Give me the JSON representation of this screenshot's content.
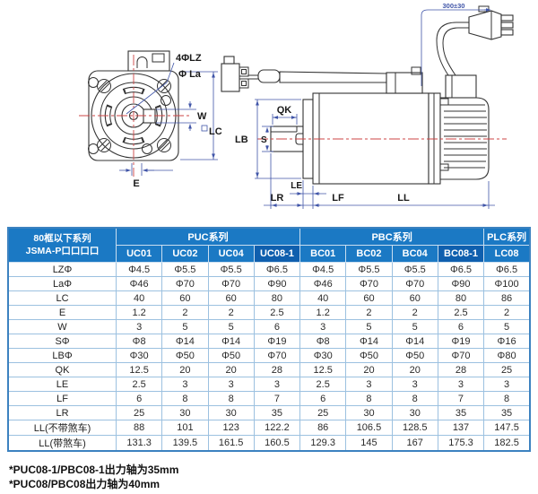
{
  "diagram": {
    "front_labels": {
      "bolt_holes": "4ΦLZ",
      "pilot_dia": "Φ La",
      "keyway_width": "W",
      "frame_size": "LC",
      "keyway_offset": "E"
    },
    "side_labels": {
      "keyway_length": "QK",
      "pilot_boss": "LB",
      "shaft_dia": "S",
      "le": "LE",
      "shaft_length": "LR",
      "lf": "LF",
      "body_length": "LL",
      "cable_length": "300±30"
    }
  },
  "table": {
    "corner": [
      "80框以下系列",
      "JSMA-P口口口口"
    ],
    "groups": [
      {
        "label": "PUC系列",
        "span": 4
      },
      {
        "label": "PBC系列",
        "span": 4
      },
      {
        "label": "PLC系列",
        "span": 1
      }
    ],
    "columns": [
      "UC01",
      "UC02",
      "UC04",
      "UC08-1",
      "BC01",
      "BC02",
      "BC04",
      "BC08-1",
      "LC08"
    ],
    "highlighted_columns": [
      3,
      7
    ],
    "rows": [
      {
        "label": "LZΦ",
        "values": [
          "Φ4.5",
          "Φ5.5",
          "Φ5.5",
          "Φ6.5",
          "Φ4.5",
          "Φ5.5",
          "Φ5.5",
          "Φ6.5",
          "Φ6.5"
        ]
      },
      {
        "label": "LaΦ",
        "values": [
          "Φ46",
          "Φ70",
          "Φ70",
          "Φ90",
          "Φ46",
          "Φ70",
          "Φ70",
          "Φ90",
          "Φ100"
        ]
      },
      {
        "label": "LC",
        "values": [
          "40",
          "60",
          "60",
          "80",
          "40",
          "60",
          "60",
          "80",
          "86"
        ]
      },
      {
        "label": "E",
        "values": [
          "1.2",
          "2",
          "2",
          "2.5",
          "1.2",
          "2",
          "2",
          "2.5",
          "2"
        ]
      },
      {
        "label": "W",
        "values": [
          "3",
          "5",
          "5",
          "6",
          "3",
          "5",
          "5",
          "6",
          "5"
        ]
      },
      {
        "label": "SΦ",
        "values": [
          "Φ8",
          "Φ14",
          "Φ14",
          "Φ19",
          "Φ8",
          "Φ14",
          "Φ14",
          "Φ19",
          "Φ16"
        ]
      },
      {
        "label": "LBΦ",
        "values": [
          "Φ30",
          "Φ50",
          "Φ50",
          "Φ70",
          "Φ30",
          "Φ50",
          "Φ50",
          "Φ70",
          "Φ80"
        ]
      },
      {
        "label": "QK",
        "values": [
          "12.5",
          "20",
          "20",
          "28",
          "12.5",
          "20",
          "20",
          "28",
          "25"
        ]
      },
      {
        "label": "LE",
        "values": [
          "2.5",
          "3",
          "3",
          "3",
          "2.5",
          "3",
          "3",
          "3",
          "3"
        ]
      },
      {
        "label": "LF",
        "values": [
          "6",
          "8",
          "8",
          "7",
          "6",
          "8",
          "8",
          "7",
          "8"
        ]
      },
      {
        "label": "LR",
        "values": [
          "25",
          "30",
          "30",
          "35",
          "25",
          "30",
          "30",
          "35",
          "35"
        ]
      },
      {
        "label": "LL(不带煞车)",
        "values": [
          "88",
          "101",
          "123",
          "122.2",
          "86",
          "106.5",
          "128.5",
          "137",
          "147.5"
        ]
      },
      {
        "label": "LL(带煞车)",
        "values": [
          "131.3",
          "139.5",
          "161.5",
          "160.5",
          "129.3",
          "145",
          "167",
          "175.3",
          "182.5"
        ]
      }
    ]
  },
  "footnotes": [
    "*PUC08-1/PBC08-1出力轴为35mm",
    "*PUC08/PBC08出力轴为40mm"
  ],
  "colors": {
    "header_blue": "#1b79c4",
    "header_dark_blue": "#0f5fae",
    "border_blue": "#3c82c0",
    "grid_blue": "#9cc1e0",
    "dim_blue": "#4055a8",
    "centerline_red": "#cc4444"
  }
}
